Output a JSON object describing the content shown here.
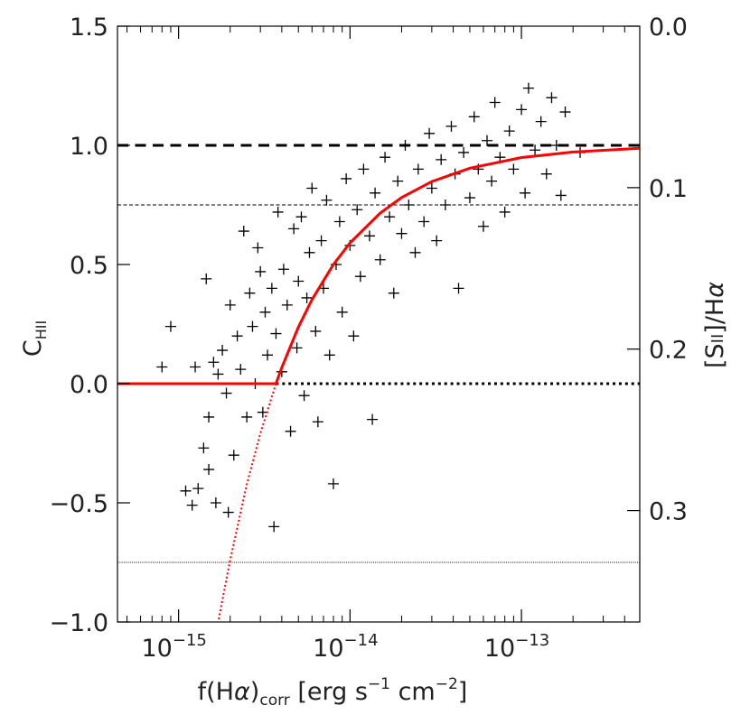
{
  "chart_data": {
    "type": "scatter",
    "xscale": "log",
    "xlim": [
      4.4e-16,
      4.9e-13
    ],
    "ylim": [
      -1.0,
      1.5
    ],
    "y2lim": [
      0.369,
      0.0
    ],
    "xticks": [
      {
        "value": 1e-15,
        "label": "10",
        "exponent": "−15"
      },
      {
        "value": 1e-14,
        "label": "10",
        "exponent": "−14"
      },
      {
        "value": 1e-13,
        "label": "10",
        "exponent": "−13"
      }
    ],
    "xminor_ticks": [
      5e-16,
      6e-16,
      7e-16,
      8e-16,
      9e-16,
      2e-15,
      3e-15,
      4e-15,
      5e-15,
      6e-15,
      7e-15,
      8e-15,
      9e-15,
      2e-14,
      3e-14,
      4e-14,
      5e-14,
      6e-14,
      7e-14,
      8e-14,
      9e-14,
      2e-13,
      3e-13,
      4e-13
    ],
    "yticks": [
      {
        "value": -1.0,
        "label": "−1.0"
      },
      {
        "value": -0.5,
        "label": "−0.5"
      },
      {
        "value": 0.0,
        "label": "0.0"
      },
      {
        "value": 0.5,
        "label": "0.5"
      },
      {
        "value": 1.0,
        "label": "1.0"
      },
      {
        "value": 1.5,
        "label": "1.5"
      }
    ],
    "y2ticks": [
      {
        "value": 0.0,
        "label": "0.0"
      },
      0.1,
      0.2,
      0.3
    ],
    "xlabel": [
      "f(H",
      "α",
      ")",
      "corr",
      " [erg s",
      "−1",
      " cm",
      "−2",
      "]"
    ],
    "ylabel": [
      "C",
      "HII"
    ],
    "y2label": [
      "[S",
      "II",
      "]/H",
      "α"
    ],
    "reference_lines": [
      {
        "y": 1.0,
        "style": "dashed",
        "width": 3,
        "color": "#000000"
      },
      {
        "y": 0.75,
        "style": "dashed",
        "width": 1,
        "color": "#000000"
      },
      {
        "y": 0.0,
        "style": "dotted",
        "width": 3,
        "color": "#000000",
        "xmin": 3.7e-15
      },
      {
        "y": -0.75,
        "style": "dotted",
        "width": 1,
        "color": "#000000"
      }
    ],
    "curves": [
      {
        "color": "#ff0000",
        "style": "solid",
        "width": 3,
        "x": [
          4.4e-16,
          3.7e-15,
          4e-15,
          5e-15,
          6e-15,
          8e-15,
          1e-14,
          1.5e-14,
          2e-14,
          3e-14,
          5e-14,
          1e-13,
          2e-13,
          4.9e-13
        ],
        "values": [
          0.0,
          0.0,
          0.068,
          0.237,
          0.353,
          0.5,
          0.591,
          0.716,
          0.781,
          0.848,
          0.904,
          0.949,
          0.972,
          0.988
        ]
      },
      {
        "color": "#ff0000",
        "style": "dotted",
        "width": 2,
        "x": [
          3.7e-15,
          3e-15,
          2.5e-15,
          2e-15,
          1.7e-15
        ],
        "values": [
          0.0,
          -0.208,
          -0.423,
          -0.74,
          -1.0
        ]
      }
    ],
    "series": [
      {
        "color": "#000000",
        "x": [
          8e-16,
          9e-16,
          1.1e-15,
          1.2e-15,
          1.25e-15,
          1.3e-15,
          1.4e-15,
          1.45e-15,
          1.5e-15,
          1.5e-15,
          1.6e-15,
          1.65e-15,
          1.7e-15,
          1.8e-15,
          1.9e-15,
          1.95e-15,
          2e-15,
          2.1e-15,
          2.2e-15,
          2.3e-15,
          2.4e-15,
          2.5e-15,
          2.6e-15,
          2.7e-15,
          2.8e-15,
          2.9e-15,
          3e-15,
          3.1e-15,
          3.2e-15,
          3.3e-15,
          3.5e-15,
          3.6e-15,
          3.7e-15,
          3.8e-15,
          4e-15,
          4.1e-15,
          4.3e-15,
          4.5e-15,
          4.7e-15,
          4.9e-15,
          5e-15,
          5.2e-15,
          5.4e-15,
          5.6e-15,
          5.8e-15,
          6e-15,
          6.3e-15,
          6.5e-15,
          6.8e-15,
          7e-15,
          7.3e-15,
          7.6e-15,
          8e-15,
          8.3e-15,
          8.7e-15,
          9e-15,
          9.5e-15,
          1e-14,
          1.05e-14,
          1.1e-14,
          1.15e-14,
          1.2e-14,
          1.3e-14,
          1.35e-14,
          1.4e-14,
          1.5e-14,
          1.6e-14,
          1.7e-14,
          1.8e-14,
          1.9e-14,
          2e-14,
          2.1e-14,
          2.2e-14,
          2.4e-14,
          2.5e-14,
          2.7e-14,
          2.9e-14,
          3e-14,
          3.2e-14,
          3.4e-14,
          3.6e-14,
          3.9e-14,
          4.1e-14,
          4.3e-14,
          4.6e-14,
          5e-14,
          5.3e-14,
          5.6e-14,
          6e-14,
          6.3e-14,
          6.7e-14,
          7e-14,
          7.5e-14,
          8e-14,
          8.5e-14,
          9e-14,
          1e-13,
          1.05e-13,
          1.1e-13,
          1.2e-13,
          1.3e-13,
          1.4e-13,
          1.5e-13,
          1.6e-13,
          1.7e-13,
          1.8e-13,
          2.2e-13
        ],
        "values": [
          0.07,
          0.24,
          -0.45,
          -0.51,
          0.07,
          -0.44,
          -0.27,
          0.44,
          -0.36,
          -0.14,
          0.09,
          -0.5,
          0.04,
          0.14,
          -0.04,
          -0.54,
          0.33,
          -0.3,
          0.2,
          0.06,
          0.64,
          -0.14,
          0.38,
          0.24,
          0.0,
          0.57,
          0.47,
          -0.12,
          0.3,
          0.12,
          0.4,
          -0.6,
          0.21,
          0.72,
          0.05,
          0.48,
          0.33,
          -0.2,
          0.65,
          0.15,
          0.43,
          0.7,
          -0.05,
          0.36,
          0.55,
          0.82,
          0.22,
          -0.16,
          0.6,
          0.4,
          0.77,
          0.12,
          -0.42,
          0.5,
          0.68,
          0.3,
          0.86,
          0.58,
          0.2,
          0.73,
          0.45,
          0.9,
          0.62,
          -0.15,
          0.8,
          0.52,
          0.95,
          0.7,
          0.38,
          0.85,
          0.63,
          1.0,
          0.75,
          0.55,
          0.9,
          0.68,
          1.05,
          0.82,
          0.6,
          0.94,
          0.75,
          1.08,
          0.88,
          0.4,
          0.97,
          0.78,
          1.12,
          0.9,
          0.66,
          1.02,
          0.85,
          1.18,
          0.95,
          0.72,
          1.06,
          0.9,
          1.15,
          0.8,
          1.24,
          0.98,
          1.1,
          0.88,
          1.2,
          1.0,
          0.79,
          1.14,
          0.97
        ]
      }
    ]
  }
}
